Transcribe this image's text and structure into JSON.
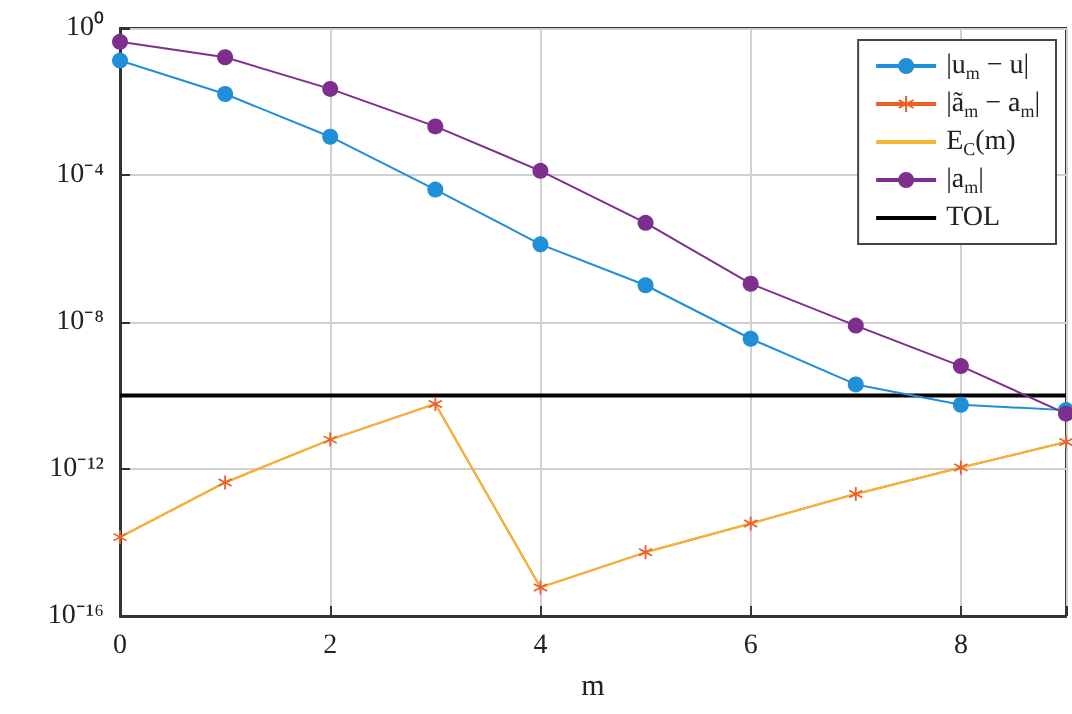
{
  "chart_data": {
    "type": "line",
    "xlabel": "m",
    "x": [
      0,
      1,
      2,
      3,
      4,
      5,
      6,
      7,
      8,
      9
    ],
    "series": [
      {
        "name": "|u$_{m}$ − u|",
        "color": "#1f8fd8",
        "marker": "circle",
        "values": [
          0.13,
          0.016,
          0.0011,
          4e-05,
          1.3e-06,
          1e-07,
          3.5e-09,
          2e-10,
          5.6e-11,
          4e-11
        ]
      },
      {
        "name": "|ã$_{m}$ − a$_{m}$|",
        "color": "#e8602a",
        "marker": "cross",
        "values": [
          1.4e-14,
          4.3e-13,
          6.3e-12,
          5.9e-11,
          6e-16,
          5.4e-15,
          3.3e-14,
          2.1e-13,
          1.1e-12,
          5.4e-12
        ]
      },
      {
        "name": "E$_{C}$(m)",
        "color": "#f5b731",
        "marker": "none",
        "values": [
          1.4e-14,
          4.3e-13,
          6.3e-12,
          5.9e-11,
          6e-16,
          5.4e-15,
          3.3e-14,
          2.1e-13,
          1.1e-12,
          5.4e-12
        ]
      },
      {
        "name": "|a$_{m}$|",
        "color": "#7e2f8e",
        "marker": "circle",
        "values": [
          0.42,
          0.16,
          0.022,
          0.0021,
          0.00013,
          5e-06,
          1.1e-07,
          8e-09,
          6.3e-10,
          3.2e-11
        ]
      }
    ],
    "ref_lines": [
      {
        "axis": "y",
        "value": 1e-10,
        "label": "TOL",
        "color": "#000000"
      }
    ],
    "log": "y",
    "xlim": [
      0,
      9
    ],
    "xticks": [
      0,
      2,
      4,
      6,
      8
    ],
    "ylim": [
      1e-16,
      1
    ],
    "yticks": [
      {
        "value": 1e-16,
        "label": "10⁻¹⁶"
      },
      {
        "value": 1e-12,
        "label": "10⁻¹²"
      },
      {
        "value": 1e-08,
        "label": "10⁻⁸"
      },
      {
        "value": 0.0001,
        "label": "10⁻⁴"
      },
      {
        "value": 1,
        "label": "10⁰"
      }
    ],
    "grid": true,
    "legend": "top right",
    "line_style": "solid"
  }
}
